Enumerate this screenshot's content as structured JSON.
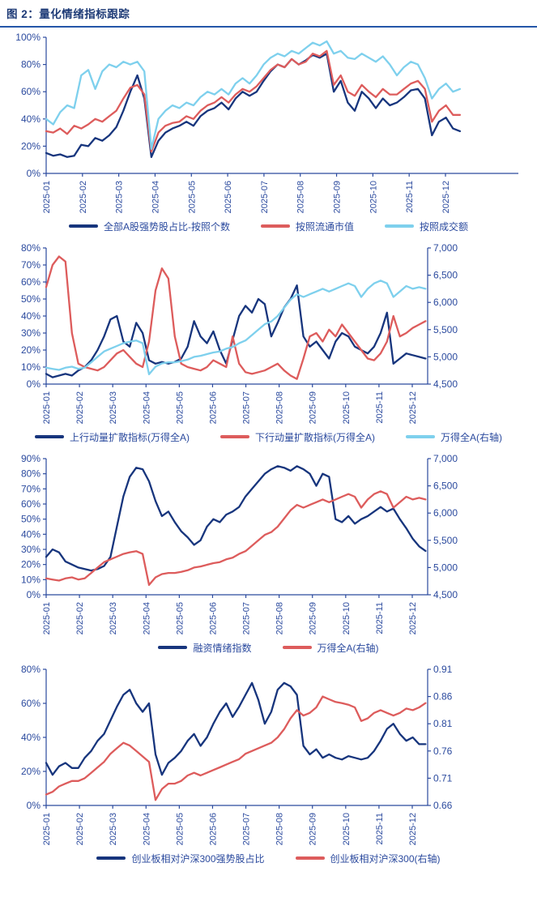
{
  "page": {
    "title": "图 2：量化情绪指标跟踪"
  },
  "colors": {
    "navy": "#17357D",
    "red": "#DD5C5C",
    "cyan": "#7ED0ED",
    "axis": "#2B4A9E",
    "title": "#1E3B77",
    "rule": "#2456A8"
  },
  "chart_data": [
    {
      "type": "line",
      "title": "",
      "categories": [
        "2025-01",
        "2025-02",
        "2025-03",
        "2025-04",
        "2025-05",
        "2025-06",
        "2025-07",
        "2025-08",
        "2025-09",
        "2025-10",
        "2025-11",
        "2025-12"
      ],
      "left_axis": {
        "min": 0,
        "max": 100,
        "ticks": [
          "0%",
          "20%",
          "40%",
          "60%",
          "80%",
          "100%"
        ]
      },
      "right_axis": null,
      "legend_position": "bottom",
      "grid": false,
      "series": [
        {
          "name": "全部A股强势股占比-按照个数",
          "color_key": "navy",
          "axis": "left",
          "values": [
            15,
            13,
            14,
            12,
            13,
            21,
            20,
            26,
            24,
            28,
            34,
            46,
            60,
            72,
            55,
            12,
            24,
            30,
            33,
            35,
            38,
            35,
            42,
            46,
            48,
            52,
            47,
            55,
            60,
            57,
            60,
            68,
            75,
            80,
            78,
            84,
            80,
            83,
            87,
            85,
            88,
            60,
            68,
            52,
            46,
            60,
            55,
            48,
            55,
            50,
            52,
            56,
            61,
            62,
            55,
            28,
            38,
            41,
            33,
            31
          ]
        },
        {
          "name": "按照流通市值",
          "color_key": "red",
          "axis": "left",
          "values": [
            31,
            30,
            33,
            29,
            35,
            33,
            36,
            40,
            38,
            42,
            46,
            55,
            63,
            65,
            58,
            16,
            30,
            35,
            37,
            38,
            42,
            40,
            46,
            50,
            52,
            56,
            52,
            58,
            62,
            60,
            64,
            70,
            76,
            80,
            78,
            84,
            80,
            82,
            88,
            86,
            90,
            65,
            72,
            60,
            57,
            65,
            60,
            56,
            62,
            58,
            58,
            62,
            66,
            68,
            62,
            38,
            46,
            50,
            43,
            43
          ]
        },
        {
          "name": "按照成交额",
          "color_key": "cyan",
          "axis": "left",
          "values": [
            40,
            36,
            45,
            50,
            48,
            72,
            76,
            62,
            75,
            80,
            78,
            82,
            80,
            82,
            75,
            18,
            40,
            46,
            50,
            48,
            52,
            50,
            56,
            60,
            58,
            62,
            58,
            66,
            70,
            66,
            72,
            80,
            85,
            88,
            86,
            90,
            88,
            92,
            96,
            94,
            97,
            88,
            90,
            85,
            84,
            88,
            85,
            82,
            86,
            80,
            72,
            78,
            82,
            80,
            70,
            55,
            62,
            66,
            60,
            62
          ]
        }
      ]
    },
    {
      "type": "line",
      "title": "",
      "categories": [
        "2025-01",
        "2025-02",
        "2025-03",
        "2025-04",
        "2025-05",
        "2025-06",
        "2025-07",
        "2025-08",
        "2025-09",
        "2025-10",
        "2025-11",
        "2025-12"
      ],
      "left_axis": {
        "min": 0,
        "max": 80,
        "ticks": [
          "0%",
          "10%",
          "20%",
          "30%",
          "40%",
          "50%",
          "60%",
          "70%",
          "80%"
        ]
      },
      "right_axis": {
        "min": 4500,
        "max": 7000,
        "ticks": [
          "4,500",
          "5,000",
          "5,500",
          "6,000",
          "6,500",
          "7,000"
        ]
      },
      "legend_position": "bottom",
      "grid": false,
      "series": [
        {
          "name": "上行动量扩散指标(万得全A)",
          "color_key": "navy",
          "axis": "left",
          "values": [
            6,
            4,
            5,
            6,
            5,
            8,
            10,
            14,
            20,
            28,
            38,
            40,
            25,
            22,
            36,
            30,
            14,
            12,
            13,
            12,
            13,
            15,
            22,
            37,
            28,
            24,
            31,
            20,
            12,
            26,
            40,
            46,
            42,
            50,
            47,
            28,
            36,
            45,
            50,
            58,
            28,
            22,
            25,
            20,
            15,
            25,
            30,
            28,
            22,
            20,
            18,
            22,
            30,
            42,
            12,
            15,
            18,
            17,
            16,
            15
          ]
        },
        {
          "name": "下行动量扩散指标(万得全A)",
          "color_key": "red",
          "axis": "left",
          "values": [
            57,
            70,
            75,
            72,
            30,
            12,
            10,
            9,
            8,
            10,
            14,
            18,
            20,
            16,
            12,
            10,
            25,
            55,
            68,
            62,
            28,
            12,
            10,
            9,
            8,
            10,
            14,
            12,
            10,
            28,
            12,
            7,
            6,
            7,
            8,
            10,
            12,
            8,
            5,
            3,
            15,
            28,
            30,
            25,
            32,
            28,
            35,
            30,
            25,
            20,
            15,
            14,
            18,
            25,
            40,
            28,
            30,
            33,
            35,
            37
          ]
        },
        {
          "name": "万得全A(右轴)",
          "color_key": "cyan",
          "axis": "right",
          "values": [
            4800,
            4780,
            4760,
            4800,
            4820,
            4780,
            4800,
            4900,
            5000,
            5100,
            5150,
            5200,
            5250,
            5280,
            5300,
            5250,
            4680,
            4820,
            4880,
            4900,
            4900,
            4920,
            4950,
            5000,
            5020,
            5050,
            5080,
            5100,
            5150,
            5180,
            5250,
            5300,
            5400,
            5500,
            5600,
            5650,
            5750,
            5900,
            6050,
            6150,
            6100,
            6150,
            6200,
            6250,
            6200,
            6250,
            6300,
            6350,
            6300,
            6100,
            6250,
            6350,
            6400,
            6350,
            6100,
            6200,
            6300,
            6250,
            6280,
            6250
          ]
        }
      ]
    },
    {
      "type": "line",
      "title": "",
      "categories": [
        "2025-01",
        "2025-02",
        "2025-03",
        "2025-04",
        "2025-05",
        "2025-06",
        "2025-07",
        "2025-08",
        "2025-09",
        "2025-10",
        "2025-11",
        "2025-12"
      ],
      "left_axis": {
        "min": 0,
        "max": 90,
        "ticks": [
          "0%",
          "10%",
          "20%",
          "30%",
          "40%",
          "50%",
          "60%",
          "70%",
          "80%",
          "90%"
        ]
      },
      "right_axis": {
        "min": 4500,
        "max": 7000,
        "ticks": [
          "4,500",
          "5,000",
          "5,500",
          "6,000",
          "6,500",
          "7,000"
        ]
      },
      "legend_position": "bottom",
      "grid": false,
      "series": [
        {
          "name": "融资情绪指数",
          "color_key": "navy",
          "axis": "left",
          "values": [
            25,
            30,
            28,
            22,
            20,
            18,
            17,
            16,
            17,
            19,
            25,
            45,
            65,
            78,
            84,
            83,
            75,
            62,
            52,
            55,
            48,
            42,
            38,
            33,
            36,
            45,
            50,
            48,
            53,
            55,
            58,
            65,
            70,
            75,
            80,
            83,
            85,
            84,
            82,
            85,
            83,
            80,
            72,
            80,
            78,
            50,
            48,
            52,
            47,
            50,
            52,
            55,
            58,
            55,
            57,
            50,
            44,
            37,
            32,
            29
          ]
        },
        {
          "name": "万得全A(右轴)",
          "color_key": "red",
          "axis": "right",
          "values": [
            4800,
            4780,
            4760,
            4800,
            4820,
            4780,
            4800,
            4900,
            5000,
            5100,
            5150,
            5200,
            5250,
            5280,
            5300,
            5250,
            4680,
            4820,
            4880,
            4900,
            4900,
            4920,
            4950,
            5000,
            5020,
            5050,
            5080,
            5100,
            5150,
            5180,
            5250,
            5300,
            5400,
            5500,
            5600,
            5650,
            5750,
            5900,
            6050,
            6150,
            6100,
            6150,
            6200,
            6250,
            6200,
            6250,
            6300,
            6350,
            6300,
            6100,
            6250,
            6350,
            6400,
            6350,
            6100,
            6200,
            6300,
            6250,
            6280,
            6250
          ]
        }
      ]
    },
    {
      "type": "line",
      "title": "",
      "categories": [
        "2025-01",
        "2025-02",
        "2025-03",
        "2025-04",
        "2025-05",
        "2025-06",
        "2025-07",
        "2025-08",
        "2025-09",
        "2025-10",
        "2025-11",
        "2025-12"
      ],
      "left_axis": {
        "min": 0,
        "max": 80,
        "ticks": [
          "0%",
          "20%",
          "40%",
          "60%",
          "80%"
        ]
      },
      "right_axis": {
        "min": 0.66,
        "max": 0.91,
        "ticks": [
          "0.66",
          "0.71",
          "0.76",
          "0.81",
          "0.86",
          "0.91"
        ]
      },
      "legend_position": "bottom",
      "grid": false,
      "series": [
        {
          "name": "创业板相对沪深300强势股占比",
          "color_key": "navy",
          "axis": "left",
          "values": [
            25,
            18,
            23,
            25,
            22,
            22,
            28,
            32,
            38,
            42,
            50,
            58,
            65,
            68,
            60,
            55,
            60,
            30,
            18,
            25,
            28,
            32,
            38,
            42,
            35,
            40,
            48,
            55,
            60,
            52,
            58,
            65,
            72,
            62,
            48,
            55,
            68,
            72,
            70,
            65,
            35,
            30,
            33,
            28,
            30,
            28,
            27,
            29,
            28,
            27,
            28,
            32,
            38,
            45,
            48,
            42,
            38,
            40,
            36,
            36
          ]
        },
        {
          "name": "创业板相对沪深300(右轴)",
          "color_key": "red",
          "axis": "right",
          "values": [
            0.68,
            0.685,
            0.695,
            0.7,
            0.705,
            0.705,
            0.71,
            0.72,
            0.73,
            0.74,
            0.755,
            0.765,
            0.775,
            0.77,
            0.76,
            0.75,
            0.74,
            0.67,
            0.69,
            0.7,
            0.7,
            0.705,
            0.715,
            0.72,
            0.715,
            0.72,
            0.725,
            0.73,
            0.735,
            0.74,
            0.745,
            0.755,
            0.76,
            0.765,
            0.77,
            0.775,
            0.785,
            0.8,
            0.82,
            0.835,
            0.825,
            0.83,
            0.84,
            0.86,
            0.855,
            0.85,
            0.848,
            0.845,
            0.84,
            0.815,
            0.82,
            0.83,
            0.835,
            0.83,
            0.825,
            0.83,
            0.838,
            0.835,
            0.84,
            0.848
          ]
        }
      ]
    }
  ]
}
